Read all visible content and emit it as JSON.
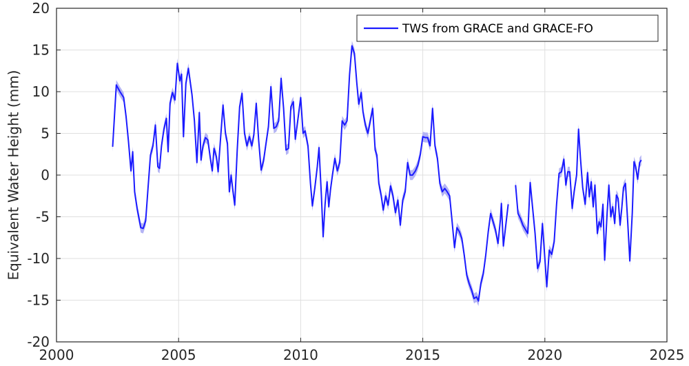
{
  "chart_data": {
    "type": "line",
    "title": "",
    "xlabel": "",
    "ylabel": "Equivalent Water Height (mm)",
    "xlim": [
      2000,
      2025
    ],
    "ylim": [
      -20,
      20
    ],
    "xticks": [
      2000,
      2005,
      2010,
      2015,
      2020,
      2025
    ],
    "yticks": [
      -20,
      -15,
      -10,
      -5,
      0,
      5,
      10,
      15,
      20
    ],
    "grid": true,
    "legend_position": "top-right",
    "colors": {
      "line": "#1a1aff",
      "band": "#b4b4f5",
      "grid": "#dfdfdf",
      "axis": "#262626"
    },
    "series": [
      {
        "name": "TWS from GRACE and GRACE-FO",
        "segments": [
          [
            [
              2002.3,
              3.4
            ],
            [
              2002.45,
              10.8
            ],
            [
              2002.6,
              10
            ],
            [
              2002.75,
              9.3
            ],
            [
              2002.85,
              7
            ],
            [
              2002.95,
              4
            ],
            [
              2003.05,
              0.5
            ],
            [
              2003.12,
              2.8
            ],
            [
              2003.2,
              -2
            ],
            [
              2003.3,
              -4
            ],
            [
              2003.45,
              -6.3
            ],
            [
              2003.55,
              -6.4
            ],
            [
              2003.65,
              -5.5
            ],
            [
              2003.75,
              -1.5
            ],
            [
              2003.85,
              2.4
            ],
            [
              2003.95,
              3.5
            ],
            [
              2004.05,
              6
            ],
            [
              2004.15,
              1
            ],
            [
              2004.22,
              0.8
            ],
            [
              2004.3,
              3.5
            ],
            [
              2004.4,
              5.5
            ],
            [
              2004.5,
              6.8
            ],
            [
              2004.57,
              2.8
            ],
            [
              2004.65,
              8.6
            ],
            [
              2004.75,
              9.9
            ],
            [
              2004.85,
              9
            ],
            [
              2004.95,
              13.4
            ],
            [
              2005.05,
              11.3
            ],
            [
              2005.12,
              12.1
            ],
            [
              2005.2,
              4.6
            ],
            [
              2005.3,
              11
            ],
            [
              2005.4,
              12.8
            ],
            [
              2005.55,
              9.6
            ],
            [
              2005.65,
              6.5
            ],
            [
              2005.75,
              1.5
            ],
            [
              2005.85,
              7.5
            ],
            [
              2005.92,
              1.8
            ],
            [
              2006.0,
              3.5
            ],
            [
              2006.1,
              4.5
            ],
            [
              2006.2,
              4.2
            ],
            [
              2006.3,
              2
            ],
            [
              2006.38,
              0.5
            ],
            [
              2006.45,
              3.2
            ],
            [
              2006.55,
              2.2
            ],
            [
              2006.62,
              0.4
            ],
            [
              2006.72,
              4.5
            ],
            [
              2006.82,
              8.4
            ],
            [
              2006.92,
              5
            ],
            [
              2007.0,
              3.8
            ],
            [
              2007.08,
              -2
            ],
            [
              2007.15,
              0
            ],
            [
              2007.22,
              -1.8
            ],
            [
              2007.3,
              -3.6
            ],
            [
              2007.4,
              3
            ],
            [
              2007.5,
              8.2
            ],
            [
              2007.6,
              9.8
            ],
            [
              2007.7,
              5
            ],
            [
              2007.8,
              3.5
            ],
            [
              2007.9,
              4.6
            ],
            [
              2008.0,
              3.5
            ],
            [
              2008.08,
              4.8
            ],
            [
              2008.18,
              8.6
            ],
            [
              2008.28,
              4.2
            ],
            [
              2008.38,
              0.6
            ],
            [
              2008.48,
              1.7
            ],
            [
              2008.58,
              3.8
            ],
            [
              2008.68,
              5.8
            ],
            [
              2008.78,
              10.6
            ],
            [
              2008.9,
              5.6
            ],
            [
              2009.0,
              5.8
            ],
            [
              2009.1,
              6.5
            ],
            [
              2009.2,
              11.6
            ],
            [
              2009.3,
              8
            ],
            [
              2009.4,
              3
            ],
            [
              2009.5,
              3.2
            ],
            [
              2009.6,
              8.2
            ],
            [
              2009.7,
              8.8
            ],
            [
              2009.78,
              4.3
            ],
            [
              2009.88,
              6.5
            ],
            [
              2010.0,
              9.3
            ],
            [
              2010.1,
              5
            ],
            [
              2010.18,
              5.3
            ],
            [
              2010.3,
              3.5
            ],
            [
              2010.4,
              -1
            ],
            [
              2010.48,
              -3.7
            ],
            [
              2010.58,
              -1.5
            ],
            [
              2010.68,
              1
            ],
            [
              2010.75,
              3.3
            ],
            [
              2010.85,
              -2.5
            ],
            [
              2010.92,
              -7.4
            ],
            [
              2011.0,
              -3.5
            ],
            [
              2011.08,
              -0.8
            ],
            [
              2011.15,
              -3.8
            ],
            [
              2011.22,
              -1.8
            ],
            [
              2011.3,
              0
            ],
            [
              2011.4,
              2
            ],
            [
              2011.5,
              0.5
            ],
            [
              2011.6,
              1.5
            ],
            [
              2011.7,
              6.5
            ],
            [
              2011.8,
              6
            ],
            [
              2011.9,
              6.5
            ],
            [
              2012.0,
              12
            ],
            [
              2012.1,
              15.5
            ],
            [
              2012.2,
              14.6
            ],
            [
              2012.3,
              11
            ],
            [
              2012.38,
              8.5
            ],
            [
              2012.48,
              9.9
            ],
            [
              2012.55,
              7.6
            ],
            [
              2012.65,
              6
            ],
            [
              2012.75,
              5
            ],
            [
              2012.85,
              6.5
            ],
            [
              2012.95,
              8
            ],
            [
              2013.05,
              3
            ],
            [
              2013.12,
              2.4
            ],
            [
              2013.2,
              -1
            ],
            [
              2013.3,
              -2.5
            ],
            [
              2013.38,
              -4.2
            ],
            [
              2013.48,
              -2.5
            ],
            [
              2013.58,
              -3.6
            ],
            [
              2013.68,
              -1.3
            ],
            [
              2013.78,
              -2.5
            ],
            [
              2013.88,
              -4.5
            ],
            [
              2013.98,
              -3
            ],
            [
              2014.08,
              -6
            ],
            [
              2014.18,
              -3
            ],
            [
              2014.28,
              -2
            ],
            [
              2014.38,
              1.5
            ],
            [
              2014.48,
              0
            ],
            [
              2014.58,
              0
            ],
            [
              2014.7,
              0.5
            ],
            [
              2014.8,
              1.2
            ],
            [
              2014.9,
              2.5
            ],
            [
              2015.0,
              4.6
            ],
            [
              2015.1,
              4.5
            ],
            [
              2015.2,
              4.5
            ],
            [
              2015.3,
              3.5
            ],
            [
              2015.4,
              8
            ],
            [
              2015.5,
              3.5
            ],
            [
              2015.6,
              2
            ],
            [
              2015.7,
              -1
            ],
            [
              2015.8,
              -2
            ],
            [
              2015.9,
              -1.6
            ],
            [
              2016.0,
              -2
            ],
            [
              2016.1,
              -2.5
            ],
            [
              2016.2,
              -5.5
            ],
            [
              2016.3,
              -8.7
            ],
            [
              2016.4,
              -6.3
            ],
            [
              2016.5,
              -6.8
            ],
            [
              2016.6,
              -7.6
            ],
            [
              2016.7,
              -9.6
            ],
            [
              2016.8,
              -12
            ],
            [
              2016.9,
              -13
            ],
            [
              2017.0,
              -13.8
            ],
            [
              2017.1,
              -14.8
            ],
            [
              2017.2,
              -14.6
            ],
            [
              2017.28,
              -15.1
            ],
            [
              2017.38,
              -13
            ],
            [
              2017.48,
              -11.8
            ],
            [
              2017.58,
              -9.6
            ],
            [
              2017.68,
              -6.8
            ],
            [
              2017.78,
              -4.6
            ],
            [
              2017.88,
              -5.6
            ],
            [
              2017.98,
              -6.6
            ],
            [
              2018.08,
              -8.2
            ],
            [
              2018.18,
              -5.3
            ],
            [
              2018.22,
              -3.4
            ],
            [
              2018.3,
              -8.5
            ],
            [
              2018.4,
              -6
            ],
            [
              2018.5,
              -3.5
            ]
          ],
          [
            [
              2018.8,
              -1.2
            ],
            [
              2018.9,
              -4.6
            ],
            [
              2019.0,
              -5.2
            ],
            [
              2019.1,
              -6
            ],
            [
              2019.2,
              -6.5
            ],
            [
              2019.3,
              -7
            ],
            [
              2019.4,
              -0.9
            ],
            [
              2019.5,
              -4
            ],
            [
              2019.6,
              -7
            ],
            [
              2019.7,
              -11.2
            ],
            [
              2019.8,
              -10.4
            ],
            [
              2019.9,
              -5.8
            ],
            [
              2020.0,
              -10
            ],
            [
              2020.08,
              -13.4
            ],
            [
              2020.18,
              -9
            ],
            [
              2020.28,
              -9.5
            ],
            [
              2020.38,
              -8
            ],
            [
              2020.48,
              -3.5
            ],
            [
              2020.58,
              0.2
            ],
            [
              2020.68,
              0.4
            ],
            [
              2020.78,
              1.9
            ],
            [
              2020.86,
              -1.2
            ],
            [
              2020.94,
              0.4
            ],
            [
              2021.02,
              0.4
            ],
            [
              2021.12,
              -4
            ],
            [
              2021.2,
              -2
            ],
            [
              2021.3,
              0
            ],
            [
              2021.38,
              5.5
            ],
            [
              2021.46,
              2
            ],
            [
              2021.55,
              -1.5
            ],
            [
              2021.65,
              -3.5
            ],
            [
              2021.75,
              0.3
            ],
            [
              2021.82,
              -2.6
            ],
            [
              2021.9,
              -0.8
            ],
            [
              2021.98,
              -3.8
            ],
            [
              2022.05,
              -1.2
            ],
            [
              2022.15,
              -7
            ],
            [
              2022.22,
              -5.6
            ],
            [
              2022.3,
              -6.2
            ],
            [
              2022.38,
              -3.5
            ],
            [
              2022.45,
              -10.2
            ],
            [
              2022.55,
              -4.5
            ],
            [
              2022.62,
              -1.2
            ],
            [
              2022.7,
              -5
            ],
            [
              2022.78,
              -3.8
            ],
            [
              2022.86,
              -5.8
            ],
            [
              2022.93,
              -2.4
            ],
            [
              2023.0,
              -2.8
            ],
            [
              2023.08,
              -6
            ],
            [
              2023.15,
              -4
            ],
            [
              2023.22,
              -1.5
            ],
            [
              2023.3,
              -1
            ],
            [
              2023.4,
              -6
            ],
            [
              2023.48,
              -10.3
            ],
            [
              2023.58,
              -4.5
            ],
            [
              2023.65,
              1.6
            ],
            [
              2023.72,
              1
            ],
            [
              2023.8,
              -0.5
            ],
            [
              2023.88,
              1.5
            ],
            [
              2023.95,
              1.8
            ]
          ]
        ]
      }
    ]
  }
}
